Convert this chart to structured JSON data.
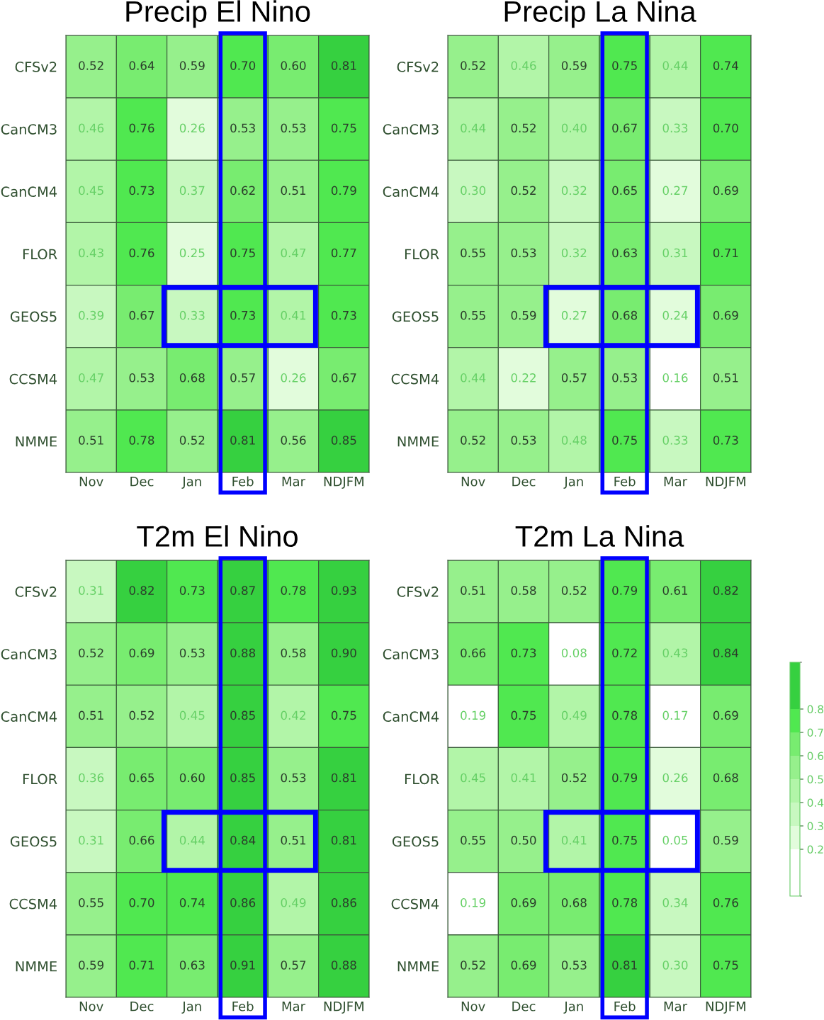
{
  "chart_data": [
    {
      "type": "heatmap",
      "title": "Precip El Nino",
      "categories": [
        "Nov",
        "Dec",
        "Jan",
        "Feb",
        "Mar",
        "NDJFM"
      ],
      "y_categories": [
        "CFSv2",
        "CanCM3",
        "CanCM4",
        "FLOR",
        "GEOS5",
        "CCSM4",
        "NMME"
      ],
      "cells": [
        [
          0.52,
          0.64,
          0.59,
          0.7,
          0.6,
          0.81
        ],
        [
          0.46,
          0.76,
          0.26,
          0.53,
          0.53,
          0.75
        ],
        [
          0.45,
          0.73,
          0.37,
          0.62,
          0.51,
          0.79
        ],
        [
          0.43,
          0.76,
          0.25,
          0.75,
          0.47,
          0.77
        ],
        [
          0.39,
          0.67,
          0.33,
          0.73,
          0.41,
          0.73
        ],
        [
          0.47,
          0.53,
          0.68,
          0.57,
          0.26,
          0.67
        ],
        [
          0.51,
          0.78,
          0.52,
          0.81,
          0.56,
          0.85
        ]
      ],
      "cell_labels": [
        [
          "0.52",
          "0.64",
          "0.59",
          "0.70",
          "0.60",
          "0.81"
        ],
        [
          "0.46",
          "0.76",
          "0.26",
          "0.53",
          "0.53",
          "0.75"
        ],
        [
          "0.45",
          "0.73",
          "0.37",
          "0.62",
          "0.51",
          "0.79"
        ],
        [
          "0.43",
          "0.76",
          "0.25",
          "0.75",
          "0.47",
          "0.77"
        ],
        [
          "0.39",
          "0.67",
          "0.33",
          "0.73",
          "0.41",
          "0.73"
        ],
        [
          "0.47",
          "0.53",
          "0.68",
          "0.57",
          "0.26",
          "0.67"
        ],
        [
          "0.51",
          "0.78",
          "0.52",
          "0.81",
          "0.56",
          "0.85"
        ]
      ]
    },
    {
      "type": "heatmap",
      "title": "Precip La Nina",
      "categories": [
        "Nov",
        "Dec",
        "Jan",
        "Feb",
        "Mar",
        "NDJFM"
      ],
      "y_categories": [
        "CFSv2",
        "CanCM3",
        "CanCM4",
        "FLOR",
        "GEOS5",
        "CCSM4",
        "NMME"
      ],
      "cells": [
        [
          0.52,
          0.46,
          0.59,
          0.75,
          0.44,
          0.74
        ],
        [
          0.44,
          0.52,
          0.4,
          0.67,
          0.33,
          0.7
        ],
        [
          0.3,
          0.52,
          0.32,
          0.65,
          0.27,
          0.69
        ],
        [
          0.55,
          0.53,
          0.32,
          0.63,
          0.31,
          0.71
        ],
        [
          0.55,
          0.59,
          0.27,
          0.68,
          0.24,
          0.69
        ],
        [
          0.44,
          0.22,
          0.57,
          0.53,
          0.16,
          0.51
        ],
        [
          0.52,
          0.53,
          0.48,
          0.75,
          0.33,
          0.73
        ]
      ],
      "cell_labels": [
        [
          "0.52",
          "0.46",
          "0.59",
          "0.75",
          "0.44",
          "0.74"
        ],
        [
          "0.44",
          "0.52",
          "0.40",
          "0.67",
          "0.33",
          "0.70"
        ],
        [
          "0.30",
          "0.52",
          "0.32",
          "0.65",
          "0.27",
          "0.69"
        ],
        [
          "0.55",
          "0.53",
          "0.32",
          "0.63",
          "0.31",
          "0.71"
        ],
        [
          "0.55",
          "0.59",
          "0.27",
          "0.68",
          "0.24",
          "0.69"
        ],
        [
          "0.44",
          "0.22",
          "0.57",
          "0.53",
          "0.16",
          "0.51"
        ],
        [
          "0.52",
          "0.53",
          "0.48",
          "0.75",
          "0.33",
          "0.73"
        ]
      ]
    },
    {
      "type": "heatmap",
      "title": "T2m El Nino",
      "categories": [
        "Nov",
        "Dec",
        "Jan",
        "Feb",
        "Mar",
        "NDJFM"
      ],
      "y_categories": [
        "CFSv2",
        "CanCM3",
        "CanCM4",
        "FLOR",
        "GEOS5",
        "CCSM4",
        "NMME"
      ],
      "cells": [
        [
          0.31,
          0.82,
          0.73,
          0.87,
          0.78,
          0.93
        ],
        [
          0.52,
          0.69,
          0.53,
          0.88,
          0.58,
          0.9
        ],
        [
          0.51,
          0.52,
          0.45,
          0.85,
          0.42,
          0.75
        ],
        [
          0.36,
          0.65,
          0.6,
          0.85,
          0.53,
          0.81
        ],
        [
          0.31,
          0.66,
          0.44,
          0.84,
          0.51,
          0.81
        ],
        [
          0.55,
          0.7,
          0.74,
          0.86,
          0.49,
          0.86
        ],
        [
          0.59,
          0.71,
          0.63,
          0.91,
          0.57,
          0.88
        ]
      ],
      "cell_labels": [
        [
          "0.31",
          "0.82",
          "0.73",
          "0.87",
          "0.78",
          "0.93"
        ],
        [
          "0.52",
          "0.69",
          "0.53",
          "0.88",
          "0.58",
          "0.90"
        ],
        [
          "0.51",
          "0.52",
          "0.45",
          "0.85",
          "0.42",
          "0.75"
        ],
        [
          "0.36",
          "0.65",
          "0.60",
          "0.85",
          "0.53",
          "0.81"
        ],
        [
          "0.31",
          "0.66",
          "0.44",
          "0.84",
          "0.51",
          "0.81"
        ],
        [
          "0.55",
          "0.70",
          "0.74",
          "0.86",
          "0.49",
          "0.86"
        ],
        [
          "0.59",
          "0.71",
          "0.63",
          "0.91",
          "0.57",
          "0.88"
        ]
      ]
    },
    {
      "type": "heatmap",
      "title": "T2m La Nina",
      "categories": [
        "Nov",
        "Dec",
        "Jan",
        "Feb",
        "Mar",
        "NDJFM"
      ],
      "y_categories": [
        "CFSv2",
        "CanCM3",
        "CanCM4",
        "FLOR",
        "GEOS5",
        "CCSM4",
        "NMME"
      ],
      "cells": [
        [
          0.51,
          0.58,
          0.52,
          0.79,
          0.61,
          0.82
        ],
        [
          0.66,
          0.73,
          0.08,
          0.72,
          0.43,
          0.84
        ],
        [
          0.19,
          0.75,
          0.49,
          0.78,
          0.17,
          0.69
        ],
        [
          0.45,
          0.41,
          0.52,
          0.79,
          0.26,
          0.68
        ],
        [
          0.55,
          0.5,
          0.41,
          0.75,
          0.05,
          0.59
        ],
        [
          0.19,
          0.69,
          0.68,
          0.78,
          0.34,
          0.76
        ],
        [
          0.52,
          0.69,
          0.53,
          0.81,
          0.3,
          0.75
        ]
      ],
      "cell_labels": [
        [
          "0.51",
          "0.58",
          "0.52",
          "0.79",
          "0.61",
          "0.82"
        ],
        [
          "0.66",
          "0.73",
          "0.08",
          "0.72",
          "0.43",
          "0.84"
        ],
        [
          "0.19",
          "0.75",
          "0.49",
          "0.78",
          "0.17",
          "0.69"
        ],
        [
          "0.45",
          "0.41",
          "0.52",
          "0.79",
          "0.26",
          "0.68"
        ],
        [
          "0.55",
          "0.50",
          "0.41",
          "0.75",
          "0.05",
          "0.59"
        ],
        [
          "0.19",
          "0.69",
          "0.68",
          "0.78",
          "0.34",
          "0.76"
        ],
        [
          "0.52",
          "0.69",
          "0.53",
          "0.81",
          "0.30",
          "0.75"
        ]
      ],
      "clim": [
        0.0,
        1.0
      ],
      "cticks": [
        0.2,
        0.3,
        0.4,
        0.5,
        0.6,
        0.7,
        0.8
      ],
      "colors": [
        "#ffffff",
        "#e2fcdc",
        "#c8f8c0",
        "#b2f5a8",
        "#96f08c",
        "#78ec70",
        "#50e850",
        "#36d040"
      ]
    }
  ]
}
